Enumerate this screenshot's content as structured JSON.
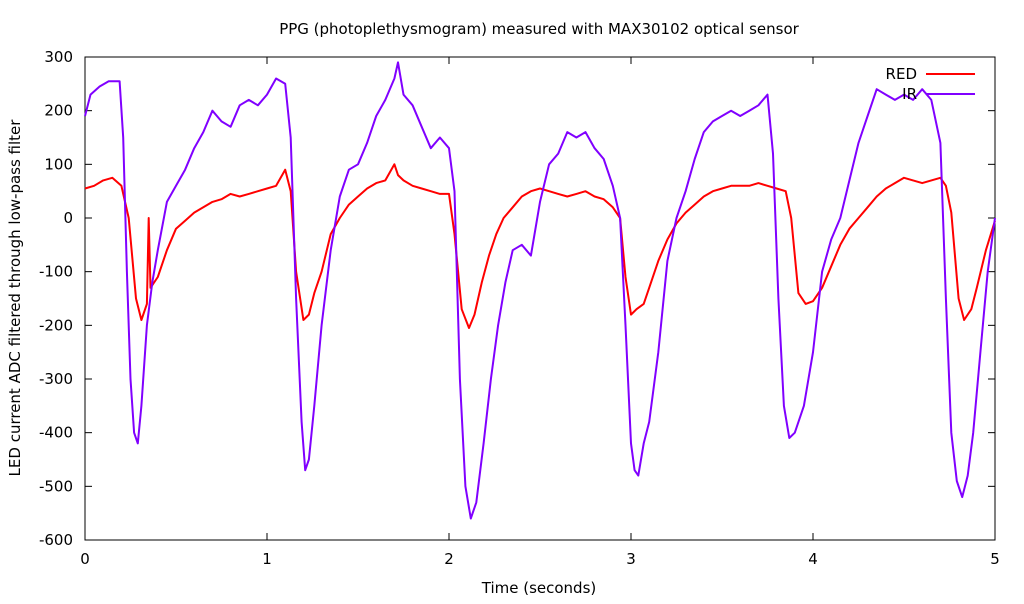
{
  "chart_data": {
    "type": "line",
    "title": "PPG (photoplethysmogram) measured with MAX30102 optical sensor",
    "xlabel": "Time (seconds)",
    "ylabel": "LED current ADC filtered through low-pass filter",
    "xlim": [
      0,
      5
    ],
    "ylim": [
      -600,
      300
    ],
    "xticks": [
      0,
      1,
      2,
      3,
      4,
      5
    ],
    "yticks": [
      -600,
      -500,
      -400,
      -300,
      -200,
      -100,
      0,
      100,
      200,
      300
    ],
    "grid": false,
    "legend": "top-right",
    "series": [
      {
        "name": "RED",
        "color": "#ff0000",
        "x": [
          0,
          0.05,
          0.1,
          0.15,
          0.2,
          0.24,
          0.28,
          0.31,
          0.34,
          0.35,
          0.36,
          0.4,
          0.45,
          0.5,
          0.55,
          0.6,
          0.65,
          0.7,
          0.75,
          0.8,
          0.85,
          0.9,
          0.95,
          1.0,
          1.05,
          1.1,
          1.13,
          1.16,
          1.2,
          1.23,
          1.26,
          1.3,
          1.35,
          1.4,
          1.45,
          1.5,
          1.55,
          1.6,
          1.65,
          1.7,
          1.72,
          1.75,
          1.8,
          1.85,
          1.9,
          1.95,
          2.0,
          2.03,
          2.07,
          2.11,
          2.14,
          2.18,
          2.22,
          2.26,
          2.3,
          2.35,
          2.4,
          2.45,
          2.5,
          2.55,
          2.6,
          2.65,
          2.7,
          2.75,
          2.8,
          2.85,
          2.9,
          2.94,
          2.97,
          3.0,
          3.03,
          3.07,
          3.1,
          3.15,
          3.2,
          3.25,
          3.3,
          3.35,
          3.4,
          3.45,
          3.5,
          3.55,
          3.6,
          3.65,
          3.7,
          3.75,
          3.8,
          3.85,
          3.88,
          3.92,
          3.96,
          4.0,
          4.05,
          4.1,
          4.15,
          4.2,
          4.25,
          4.3,
          4.35,
          4.4,
          4.45,
          4.5,
          4.55,
          4.6,
          4.65,
          4.7,
          4.73,
          4.76,
          4.8,
          4.83,
          4.87,
          4.9,
          4.95,
          5.0
        ],
        "y": [
          55,
          60,
          70,
          75,
          60,
          0,
          -150,
          -190,
          -160,
          0,
          -130,
          -110,
          -60,
          -20,
          -5,
          10,
          20,
          30,
          35,
          45,
          40,
          45,
          50,
          55,
          60,
          90,
          50,
          -100,
          -190,
          -180,
          -140,
          -100,
          -30,
          0,
          25,
          40,
          55,
          65,
          70,
          100,
          80,
          70,
          60,
          55,
          50,
          45,
          45,
          -30,
          -170,
          -205,
          -180,
          -120,
          -70,
          -30,
          0,
          20,
          40,
          50,
          55,
          50,
          45,
          40,
          45,
          50,
          40,
          35,
          20,
          0,
          -110,
          -180,
          -170,
          -160,
          -130,
          -80,
          -40,
          -10,
          10,
          25,
          40,
          50,
          55,
          60,
          60,
          60,
          65,
          60,
          55,
          50,
          0,
          -140,
          -160,
          -155,
          -130,
          -90,
          -50,
          -20,
          0,
          20,
          40,
          55,
          65,
          75,
          70,
          65,
          70,
          75,
          60,
          10,
          -150,
          -190,
          -170,
          -130,
          -60,
          -5
        ]
      },
      {
        "name": "IR",
        "color": "#8000ff",
        "x": [
          0,
          0.03,
          0.08,
          0.13,
          0.19,
          0.21,
          0.23,
          0.25,
          0.27,
          0.29,
          0.31,
          0.34,
          0.37,
          0.4,
          0.45,
          0.5,
          0.55,
          0.6,
          0.65,
          0.7,
          0.75,
          0.8,
          0.85,
          0.9,
          0.95,
          1.0,
          1.05,
          1.1,
          1.13,
          1.16,
          1.19,
          1.21,
          1.23,
          1.26,
          1.3,
          1.35,
          1.4,
          1.45,
          1.5,
          1.55,
          1.6,
          1.65,
          1.7,
          1.72,
          1.75,
          1.8,
          1.85,
          1.9,
          1.95,
          2.0,
          2.03,
          2.06,
          2.09,
          2.12,
          2.15,
          2.19,
          2.23,
          2.27,
          2.31,
          2.35,
          2.4,
          2.45,
          2.5,
          2.55,
          2.6,
          2.65,
          2.7,
          2.75,
          2.8,
          2.85,
          2.9,
          2.94,
          2.97,
          3.0,
          3.02,
          3.04,
          3.07,
          3.1,
          3.15,
          3.2,
          3.25,
          3.3,
          3.35,
          3.4,
          3.45,
          3.5,
          3.55,
          3.6,
          3.65,
          3.7,
          3.75,
          3.78,
          3.81,
          3.84,
          3.87,
          3.9,
          3.95,
          4.0,
          4.05,
          4.1,
          4.15,
          4.2,
          4.25,
          4.3,
          4.35,
          4.4,
          4.45,
          4.5,
          4.55,
          4.6,
          4.65,
          4.7,
          4.73,
          4.76,
          4.79,
          4.82,
          4.85,
          4.88,
          4.92,
          4.96,
          5.0
        ],
        "y": [
          190,
          230,
          245,
          255,
          255,
          150,
          -100,
          -300,
          -400,
          -420,
          -350,
          -200,
          -120,
          -60,
          30,
          60,
          90,
          130,
          160,
          200,
          180,
          170,
          210,
          220,
          210,
          230,
          260,
          250,
          150,
          -150,
          -380,
          -470,
          -450,
          -350,
          -200,
          -60,
          40,
          90,
          100,
          140,
          190,
          220,
          260,
          290,
          230,
          210,
          170,
          130,
          150,
          130,
          50,
          -300,
          -500,
          -560,
          -530,
          -420,
          -300,
          -200,
          -120,
          -60,
          -50,
          -70,
          30,
          100,
          120,
          160,
          150,
          160,
          130,
          110,
          60,
          0,
          -200,
          -420,
          -470,
          -480,
          -420,
          -380,
          -250,
          -80,
          0,
          50,
          110,
          160,
          180,
          190,
          200,
          190,
          200,
          210,
          230,
          120,
          -150,
          -350,
          -410,
          -400,
          -350,
          -250,
          -100,
          -40,
          0,
          70,
          140,
          190,
          240,
          230,
          220,
          230,
          220,
          240,
          220,
          140,
          -150,
          -400,
          -490,
          -520,
          -480,
          -400,
          -250,
          -100,
          0
        ]
      }
    ]
  }
}
